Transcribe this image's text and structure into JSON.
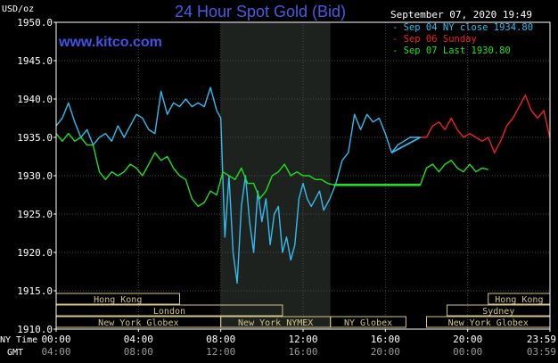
{
  "chart_data": {
    "type": "line",
    "title": "24 Hour Spot Gold (Bid)",
    "website": "www.kitco.com",
    "ylabel": "USD/oz",
    "timestamp": "September 07, 2020 19:49",
    "ylim": [
      1910,
      1950
    ],
    "y_ticks": [
      "1950.0",
      "1945.0",
      "1940.0",
      "1935.0",
      "1930.0",
      "1925.0",
      "1920.0",
      "1915.0",
      "1910.0"
    ],
    "x_row_labels": [
      "NY Time",
      "GMT"
    ],
    "x_ticks_ny": [
      "00:00",
      "04:00",
      "08:00",
      "12:00",
      "16:00",
      "20:00",
      "23:59"
    ],
    "x_ticks_gmt": [
      "04:00",
      "08:00",
      "12:00",
      "16:00",
      "20:00",
      "00:00",
      "03:59"
    ],
    "grid": true,
    "legend_position": "top-right",
    "legend": [
      {
        "label": "Sep 04 NY close 1934.80",
        "color": "#33bbee"
      },
      {
        "label": "Sep 06 Sunday",
        "color": "#ee2222"
      },
      {
        "label": "Sep 07 Last 1930.80",
        "color": "#22dd22"
      }
    ],
    "shaded_session_hours": [
      8.0,
      13.33
    ],
    "sessions": [
      {
        "label": "Hong Kong",
        "start": 0.0,
        "end": 6.0,
        "row": 0
      },
      {
        "label": "Hong Kong",
        "start": 21.0,
        "end": 24.0,
        "row": 0
      },
      {
        "label": "London",
        "start": 0.0,
        "end": 11.0,
        "row": 1
      },
      {
        "label": "Sydney",
        "start": 19.0,
        "end": 24.0,
        "row": 1
      },
      {
        "label": "New York Globex",
        "start": 0.0,
        "end": 8.0,
        "row": 2
      },
      {
        "label": "New York NYMEX",
        "start": 8.0,
        "end": 13.33,
        "row": 2
      },
      {
        "label": "NY Globex",
        "start": 13.33,
        "end": 17.0,
        "row": 2
      },
      {
        "label": "New York Globex",
        "start": 18.0,
        "end": 24.0,
        "row": 2
      }
    ],
    "series": [
      {
        "name": "Sep 04 NY close 1934.80",
        "color": "#33bbee",
        "x": [
          0,
          0.3,
          0.6,
          0.9,
          1.2,
          1.5,
          1.8,
          2.1,
          2.4,
          2.7,
          3.0,
          3.3,
          3.6,
          3.9,
          4.2,
          4.5,
          4.8,
          5.1,
          5.4,
          5.7,
          6.0,
          6.3,
          6.6,
          6.9,
          7.2,
          7.5,
          7.8,
          8.0,
          8.2,
          8.4,
          8.6,
          8.8,
          9.0,
          9.2,
          9.4,
          9.6,
          9.8,
          10.0,
          10.2,
          10.4,
          10.6,
          10.8,
          11.0,
          11.2,
          11.4,
          11.6,
          11.8,
          12.0,
          12.2,
          12.4,
          12.6,
          12.8,
          13.0,
          13.3,
          13.6,
          13.9,
          14.2,
          14.5,
          14.8,
          15.1,
          15.4,
          15.7,
          16.0,
          16.3,
          16.6,
          16.9,
          17.2,
          17.5,
          17.7
        ],
        "values": [
          1936.5,
          1937.5,
          1939.5,
          1937.0,
          1935.0,
          1936.0,
          1934.0,
          1935.0,
          1935.5,
          1934.5,
          1936.5,
          1935.0,
          1936.5,
          1938.0,
          1937.5,
          1936.0,
          1935.5,
          1941.0,
          1938.0,
          1939.5,
          1939.0,
          1940.0,
          1939.0,
          1939.5,
          1939.0,
          1941.5,
          1938.5,
          1937.5,
          1922.0,
          1930.0,
          1920.0,
          1916.0,
          1926.0,
          1930.0,
          1924.0,
          1920.0,
          1928.0,
          1924.0,
          1927.0,
          1921.0,
          1925.0,
          1926.0,
          1920.0,
          1922.0,
          1919.0,
          1921.0,
          1927.0,
          1929.0,
          1927.0,
          1926.0,
          1927.0,
          1928.0,
          1925.5,
          1927.0,
          1929.0,
          1932.0,
          1933.0,
          1938.0,
          1936.0,
          1938.0,
          1937.0,
          1937.5,
          1935.5,
          1933.0,
          1934.0,
          1934.5,
          1935.0,
          1935.0,
          1935.0
        ]
      },
      {
        "name": "Sep 06 Sunday",
        "color": "#ee2222",
        "x": [
          17.7,
          18.0,
          18.3,
          18.6,
          18.9,
          19.2,
          19.5,
          19.8,
          20.1,
          20.4,
          20.7,
          21.0,
          21.3,
          21.6,
          21.9,
          22.2,
          22.5,
          22.8,
          23.1,
          23.4,
          23.7,
          23.99
        ],
        "values": [
          1935.0,
          1935.0,
          1936.5,
          1937.0,
          1936.0,
          1937.5,
          1936.0,
          1935.0,
          1935.5,
          1935.0,
          1934.5,
          1935.0,
          1933.0,
          1934.5,
          1936.5,
          1937.5,
          1939.0,
          1940.5,
          1938.5,
          1937.5,
          1938.5,
          1935.0
        ]
      },
      {
        "name": "Sep 07 Last 1930.80",
        "color": "#22dd22",
        "x": [
          0,
          0.3,
          0.6,
          0.9,
          1.2,
          1.5,
          1.8,
          2.1,
          2.4,
          2.7,
          3.0,
          3.3,
          3.6,
          3.9,
          4.2,
          4.5,
          4.8,
          5.1,
          5.4,
          5.7,
          6.0,
          6.3,
          6.6,
          6.9,
          7.2,
          7.5,
          7.8,
          8.1,
          8.4,
          8.7,
          9.0,
          9.3,
          9.6,
          9.9,
          10.2,
          10.5,
          10.8,
          11.1,
          11.4,
          11.7,
          12.0,
          12.3,
          12.6,
          12.9,
          13.2,
          13.5,
          14.0,
          15.0,
          16.0,
          17.0,
          17.7,
          18.0,
          18.3,
          18.6,
          18.9,
          19.2,
          19.5,
          19.8,
          20.1,
          20.4,
          20.7,
          21.0
        ],
        "values": [
          1935.5,
          1934.5,
          1935.5,
          1934.5,
          1935.0,
          1934.0,
          1934.0,
          1930.5,
          1929.5,
          1930.5,
          1930.0,
          1930.5,
          1931.5,
          1931.0,
          1930.0,
          1931.5,
          1933.0,
          1932.0,
          1932.5,
          1931.0,
          1930.0,
          1929.5,
          1927.0,
          1926.0,
          1926.5,
          1928.0,
          1927.5,
          1930.5,
          1930.0,
          1929.5,
          1931.0,
          1929.0,
          1929.0,
          1927.0,
          1928.0,
          1930.0,
          1930.5,
          1931.5,
          1930.0,
          1930.5,
          1930.0,
          1930.0,
          1929.5,
          1929.5,
          1929.0,
          1928.8,
          1928.8,
          1928.8,
          1928.8,
          1928.8,
          1928.8,
          1931.0,
          1931.5,
          1930.5,
          1931.5,
          1932.0,
          1931.0,
          1930.5,
          1931.5,
          1930.5,
          1931.0,
          1930.8
        ]
      }
    ]
  }
}
